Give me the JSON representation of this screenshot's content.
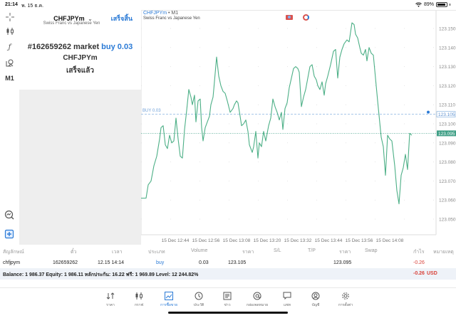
{
  "status_bar": {
    "time": "21:14",
    "date": "พ. 15 ธ.ค.",
    "battery": "89%"
  },
  "left_toolbar": {
    "items": [
      {
        "icon": "crosshair-icon"
      },
      {
        "icon": "candlestick-icon"
      },
      {
        "icon": "function-icon"
      },
      {
        "icon": "objects-icon"
      },
      {
        "label": "M1"
      }
    ],
    "bottom_items": [
      {
        "icon": "chart-search-icon"
      },
      {
        "icon": "new-order-icon"
      }
    ]
  },
  "order_panel": {
    "symbol": "CHFJPYm",
    "symbol_chevron": "⌄",
    "description": "Swiss Franc vs Japanese Yen",
    "done_label": "เสร็จสิ้น",
    "order_prefix": "#162659262 market ",
    "order_side": "buy 0.03",
    "order_symbol": "CHFJPYm",
    "order_status": "เสร็จแล้ว"
  },
  "chart": {
    "title_symbol": "CHFJPYm",
    "title_separator": " • ",
    "timeframe": "M1",
    "subtitle": "Swiss Franc vs Japanese Yen",
    "buy_line_label": "BUY 0.03",
    "buy_price_tag": "123.105",
    "bid_price_tag": "123.095",
    "line_color": "#4caf86",
    "buy_line_color": "#8ab4e0",
    "bid_tag_color": "#3f9f86"
  },
  "chart_data": {
    "type": "line",
    "title": "CHFJPYm • M1",
    "subtitle": "Swiss Franc vs Japanese Yen",
    "xlabel": "",
    "ylabel": "",
    "x_ticks": [
      "15 Dec 12:44",
      "15 Dec 12:56",
      "15 Dec 13:08",
      "15 Dec 13:20",
      "15 Dec 13:32",
      "15 Dec 13:44",
      "15 Dec 13:56",
      "15 Dec 14:08"
    ],
    "y_ticks": [
      "123.150",
      "123.140",
      "123.130",
      "123.120",
      "123.110",
      "123.100",
      "123.090",
      "123.080",
      "123.070",
      "123.060",
      "123.050"
    ],
    "ylim": [
      123.045,
      123.154
    ],
    "grid": true,
    "annotations": [
      {
        "label": "BUY 0.03",
        "price": 123.105,
        "style": "dashed"
      },
      {
        "label": "bid",
        "price": 123.095,
        "style": "dotted"
      }
    ],
    "series": [
      {
        "name": "CHFJPYm close",
        "points": [
          [
            198,
            123.061
          ],
          [
            205,
            123.061
          ],
          [
            208,
            123.068
          ],
          [
            212,
            123.07
          ],
          [
            216,
            123.078
          ],
          [
            220,
            123.083
          ],
          [
            224,
            123.092
          ],
          [
            226,
            123.098
          ],
          [
            229,
            123.099
          ],
          [
            232,
            123.089
          ],
          [
            235,
            123.087
          ],
          [
            238,
            123.094
          ],
          [
            241,
            123.09
          ],
          [
            244,
            123.091
          ],
          [
            247,
            123.103
          ],
          [
            250,
            123.092
          ],
          [
            253,
            123.083
          ],
          [
            256,
            123.082
          ],
          [
            259,
            123.097
          ],
          [
            262,
            123.107
          ],
          [
            265,
            123.118
          ],
          [
            268,
            123.114
          ],
          [
            270,
            123.11
          ],
          [
            273,
            123.115
          ],
          [
            275,
            123.101
          ],
          [
            278,
            123.112
          ],
          [
            281,
            123.113
          ],
          [
            283,
            123.098
          ],
          [
            285,
            123.091
          ],
          [
            288,
            123.098
          ],
          [
            291,
            123.101
          ],
          [
            294,
            123.104
          ],
          [
            296,
            123.11
          ],
          [
            299,
            123.114
          ],
          [
            300,
            123.118
          ],
          [
            304,
            123.135
          ],
          [
            307,
            123.125
          ],
          [
            310,
            123.12
          ],
          [
            313,
            123.117
          ],
          [
            316,
            123.116
          ],
          [
            319,
            123.112
          ],
          [
            323,
            123.106
          ],
          [
            327,
            123.108
          ],
          [
            329,
            123.11
          ],
          [
            332,
            123.112
          ],
          [
            334,
            123.111
          ],
          [
            337,
            123.104
          ],
          [
            339,
            123.099
          ],
          [
            342,
            123.1
          ],
          [
            345,
            123.102
          ],
          [
            348,
            123.096
          ],
          [
            350,
            123.089
          ],
          [
            352,
            123.087
          ],
          [
            354,
            123.085
          ],
          [
            356,
            123.088
          ],
          [
            359,
            123.096
          ],
          [
            362,
            123.082
          ],
          [
            364,
            123.09
          ],
          [
            367,
            123.088
          ],
          [
            370,
            123.096
          ],
          [
            373,
            123.091
          ],
          [
            377,
            123.099
          ],
          [
            380,
            123.103
          ],
          [
            383,
            123.113
          ],
          [
            386,
            123.109
          ],
          [
            389,
            123.106
          ],
          [
            392,
            123.102
          ],
          [
            395,
            123.106
          ],
          [
            397,
            123.097
          ],
          [
            400,
            123.108
          ],
          [
            403,
            123.111
          ],
          [
            406,
            123.119
          ],
          [
            409,
            123.124
          ],
          [
            412,
            123.129
          ],
          [
            415,
            123.13
          ],
          [
            418,
            123.129
          ],
          [
            420,
            123.127
          ],
          [
            423,
            123.109
          ],
          [
            426,
            123.114
          ],
          [
            429,
            123.118
          ],
          [
            432,
            123.124
          ],
          [
            435,
            123.13
          ],
          [
            438,
            123.131
          ],
          [
            441,
            123.125
          ],
          [
            444,
            123.123
          ],
          [
            446,
            123.12
          ],
          [
            449,
            123.118
          ],
          [
            452,
            123.122
          ],
          [
            455,
            123.115
          ],
          [
            457,
            123.121
          ],
          [
            460,
            123.125
          ],
          [
            464,
            123.131
          ],
          [
            468,
            123.138
          ],
          [
            471,
            123.139
          ],
          [
            474,
            123.124
          ],
          [
            477,
            123.135
          ],
          [
            480,
            123.139
          ],
          [
            483,
            123.142
          ],
          [
            487,
            123.144
          ],
          [
            490,
            123.143
          ],
          [
            494,
            123.153
          ],
          [
            497,
            123.152
          ],
          [
            499,
            123.147
          ],
          [
            502,
            123.145
          ],
          [
            505,
            123.14
          ],
          [
            507,
            123.137
          ],
          [
            510,
            123.136
          ],
          [
            513,
            123.139
          ],
          [
            515,
            123.133
          ],
          [
            518,
            123.14
          ],
          [
            521,
            123.137
          ],
          [
            524,
            123.136
          ],
          [
            530,
            123.112
          ],
          [
            535,
            123.093
          ],
          [
            538,
            123.088
          ],
          [
            541,
            123.073
          ],
          [
            544,
            123.094
          ],
          [
            547,
            123.092
          ],
          [
            550,
            123.091
          ],
          [
            554,
            123.078
          ],
          [
            557,
            123.065
          ],
          [
            560,
            123.058
          ],
          [
            563,
            123.073
          ],
          [
            566,
            123.077
          ],
          [
            569,
            123.084
          ],
          [
            572,
            123.076
          ],
          [
            575,
            123.095
          ],
          [
            578,
            123.094
          ]
        ]
      }
    ]
  },
  "positions": {
    "headers": [
      "สัญลักษณ์",
      "ตั๋ว",
      "เวลา",
      "ประเภท",
      "Volume",
      "ราคา",
      "S/L",
      "T/P",
      "ราคา",
      "Swap",
      "กำไร",
      "หมายเหตุ"
    ],
    "rows": [
      {
        "symbol": "chfjpym",
        "ticket": "162659262",
        "time": "12.15 14:14",
        "type": "buy",
        "volume": "0.03",
        "open_price": "123.105",
        "sl": "",
        "tp": "",
        "price": "123.095",
        "swap": "",
        "profit": "-0.26",
        "comment": ""
      }
    ],
    "summary": "Balance: 1 986.37 Equity: 1 986.11 หลักประกัน: 16.22 ฟรี: 1 969.89 Level: 12 244.82%",
    "total_profit": "-0.26",
    "currency": "USD"
  },
  "tabbar": {
    "items": [
      {
        "label": "ราคา",
        "icon": "quotes-icon"
      },
      {
        "label": "กราฟ",
        "icon": "chart-icon"
      },
      {
        "label": "การซื้อขาย",
        "icon": "trade-icon",
        "active": true
      },
      {
        "label": "ประวัติ",
        "icon": "history-icon"
      },
      {
        "label": "ข่าว",
        "icon": "news-icon"
      },
      {
        "label": "กล่องจดหมาย",
        "icon": "mailbox-icon"
      },
      {
        "label": "แชท",
        "icon": "chat-icon"
      },
      {
        "label": "บัญชี",
        "icon": "account-icon"
      },
      {
        "label": "การตั้งค่า",
        "icon": "settings-icon"
      }
    ]
  }
}
